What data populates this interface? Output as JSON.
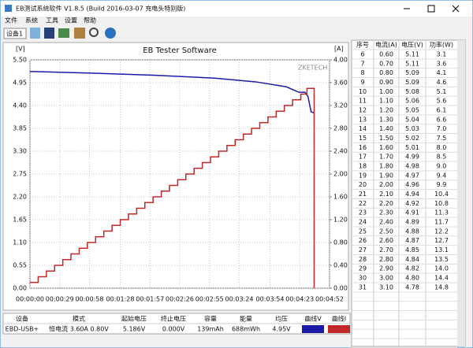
{
  "window": {
    "title": "EB测试系统软件 V1.8.5 (Build 2016-03-07 充电头特别版)"
  },
  "menu": [
    "文件",
    "系统",
    "工具",
    "设置",
    "帮助"
  ],
  "toolbar": {
    "device": "设备1"
  },
  "chart_data": {
    "type": "line",
    "title": "EB Tester Software",
    "ylabel": "[V]",
    "y2label": "[A]",
    "annotation": "ZKETECH",
    "grid": true,
    "step": true,
    "xlim": [
      0,
      292
    ],
    "xticks": [
      {
        "value": 0,
        "label": "00:00:00"
      },
      {
        "value": 29,
        "label": "00:00:29"
      },
      {
        "value": 58,
        "label": "00:00:58"
      },
      {
        "value": 88,
        "label": "00:01:28"
      },
      {
        "value": 117,
        "label": "00:01:57"
      },
      {
        "value": 146,
        "label": "00:02:26"
      },
      {
        "value": 175,
        "label": "00:02:55"
      },
      {
        "value": 204,
        "label": "00:03:24"
      },
      {
        "value": 234,
        "label": "00:03:54"
      },
      {
        "value": 263,
        "label": "00:04:23"
      },
      {
        "value": 292,
        "label": "00:04:52"
      }
    ],
    "ylim": [
      0,
      5.5
    ],
    "yticks": [
      {
        "value": 0,
        "label": "0.00"
      },
      {
        "value": 0.55,
        "label": "0.55"
      },
      {
        "value": 1.1,
        "label": "1.10"
      },
      {
        "value": 1.65,
        "label": "1.65"
      },
      {
        "value": 2.2,
        "label": "2.20"
      },
      {
        "value": 2.75,
        "label": "2.75"
      },
      {
        "value": 3.3,
        "label": "3.30"
      },
      {
        "value": 3.85,
        "label": "3.85"
      },
      {
        "value": 4.4,
        "label": "4.40"
      },
      {
        "value": 4.95,
        "label": "4.95"
      },
      {
        "value": 5.5,
        "label": "5.50"
      }
    ],
    "y2lim": [
      0,
      4
    ],
    "y2ticks": [
      {
        "value": 0,
        "label": "0.00"
      },
      {
        "value": 0.4,
        "label": "0.40"
      },
      {
        "value": 0.8,
        "label": "0.80"
      },
      {
        "value": 1.2,
        "label": "1.20"
      },
      {
        "value": 1.6,
        "label": "1.60"
      },
      {
        "value": 2,
        "label": "2.00"
      },
      {
        "value": 2.4,
        "label": "2.40"
      },
      {
        "value": 2.8,
        "label": "2.80"
      },
      {
        "value": 3.2,
        "label": "3.20"
      },
      {
        "value": 3.6,
        "label": "3.60"
      },
      {
        "value": 4,
        "label": "4.00"
      }
    ],
    "series": [
      {
        "name": "曲线V",
        "color": "#1a1aa6",
        "step": false,
        "x": [
          0,
          60,
          120,
          180,
          220,
          250,
          262,
          268,
          271,
          274,
          277
        ],
        "values": [
          5.22,
          5.18,
          5.13,
          5.06,
          4.97,
          4.85,
          4.72,
          4.72,
          4.62,
          4.25,
          4.22
        ]
      },
      {
        "name": "曲线I",
        "color": "#c0282a",
        "axis": "y2",
        "step": true,
        "x": [
          0,
          8,
          16,
          24,
          32,
          40,
          48,
          56,
          64,
          72,
          80,
          88,
          96,
          104,
          112,
          120,
          128,
          136,
          144,
          152,
          160,
          168,
          176,
          184,
          192,
          200,
          208,
          216,
          224,
          232,
          240,
          248,
          256,
          264,
          270,
          277
        ],
        "values": [
          0.1,
          0.2,
          0.3,
          0.4,
          0.5,
          0.6,
          0.7,
          0.8,
          0.9,
          1.0,
          1.1,
          1.2,
          1.3,
          1.4,
          1.5,
          1.6,
          1.7,
          1.8,
          1.9,
          2.0,
          2.1,
          2.2,
          2.3,
          2.4,
          2.5,
          2.6,
          2.7,
          2.8,
          2.9,
          3.0,
          3.1,
          3.2,
          3.3,
          3.4,
          3.5,
          0
        ]
      }
    ]
  },
  "table": {
    "columns": [
      "序号",
      "电流(A)",
      "电压(V)",
      "功率(W)"
    ],
    "rows": [
      [
        "6",
        "0.60",
        "5.11",
        "3.1"
      ],
      [
        "7",
        "0.70",
        "5.11",
        "3.6"
      ],
      [
        "8",
        "0.80",
        "5.09",
        "4.1"
      ],
      [
        "9",
        "0.90",
        "5.09",
        "4.6"
      ],
      [
        "10",
        "1.00",
        "5.08",
        "5.1"
      ],
      [
        "11",
        "1.10",
        "5.06",
        "5.6"
      ],
      [
        "12",
        "1.20",
        "5.05",
        "6.1"
      ],
      [
        "13",
        "1.30",
        "5.04",
        "6.6"
      ],
      [
        "14",
        "1.40",
        "5.03",
        "7.0"
      ],
      [
        "15",
        "1.50",
        "5.02",
        "7.5"
      ],
      [
        "16",
        "1.60",
        "5.01",
        "8.0"
      ],
      [
        "17",
        "1.70",
        "4.99",
        "8.5"
      ],
      [
        "18",
        "1.80",
        "4.98",
        "9.0"
      ],
      [
        "19",
        "1.90",
        "4.97",
        "9.4"
      ],
      [
        "20",
        "2.00",
        "4.96",
        "9.9"
      ],
      [
        "21",
        "2.10",
        "4.94",
        "10.4"
      ],
      [
        "22",
        "2.20",
        "4.92",
        "10.8"
      ],
      [
        "23",
        "2.30",
        "4.91",
        "11.3"
      ],
      [
        "24",
        "2.40",
        "4.89",
        "11.7"
      ],
      [
        "25",
        "2.50",
        "4.88",
        "12.2"
      ],
      [
        "26",
        "2.60",
        "4.87",
        "12.7"
      ],
      [
        "27",
        "2.70",
        "4.85",
        "13.1"
      ],
      [
        "28",
        "2.80",
        "4.84",
        "13.5"
      ],
      [
        "29",
        "2.90",
        "4.82",
        "14.0"
      ],
      [
        "30",
        "3.00",
        "4.80",
        "14.4"
      ],
      [
        "31",
        "3.10",
        "4.78",
        "14.8"
      ]
    ]
  },
  "status": {
    "headers": [
      "设备",
      "模式",
      "起始电压",
      "终止电压",
      "容量",
      "能量",
      "均压"
    ],
    "values": [
      "EBD-USB+",
      "恒电流 3.60A 0.80V",
      "5.186V",
      "0.000V",
      "139mAh",
      "688mWh",
      "4.95V"
    ]
  }
}
